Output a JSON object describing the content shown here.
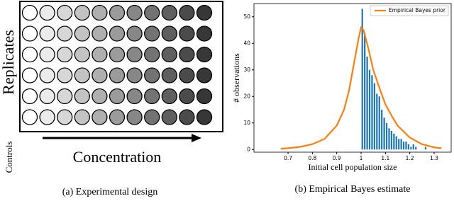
{
  "panel_a": {
    "row_label": "Replicates",
    "control_label": "Controls",
    "x_label": "Concentration",
    "caption": "(a)  Experimental design"
  },
  "chart_data": {
    "type": "histogram",
    "caption": "(b)  Empirical Bayes estimate",
    "x_label": "Initial cell population size",
    "y_label": "# observations",
    "bins": [
      1.0,
      1.01,
      1.02,
      1.03,
      1.04,
      1.05,
      1.06,
      1.07,
      1.08,
      1.09,
      1.1,
      1.11,
      1.12,
      1.13,
      1.14,
      1.15,
      1.16,
      1.17,
      1.18,
      1.19,
      1.2,
      1.21,
      1.22,
      1.23,
      1.24,
      1.25,
      1.26,
      1.27
    ],
    "values": [
      53,
      44,
      35,
      30,
      28,
      25,
      21,
      20,
      15,
      12,
      10,
      8,
      7,
      6,
      5,
      4,
      4,
      3,
      3,
      2,
      1,
      2,
      1,
      0,
      0,
      0,
      1
    ],
    "color": "#1f77b4",
    "series": [
      {
        "name": "Empirical Bayes prior",
        "color": "#ff7f0e",
        "x": [
          0.67,
          0.7,
          0.75,
          0.8,
          0.85,
          0.9,
          0.93,
          0.95,
          0.97,
          0.99,
          1.0,
          1.01,
          1.03,
          1.05,
          1.08,
          1.1,
          1.13,
          1.15,
          1.2,
          1.25,
          1.3,
          1.33
        ],
        "values": [
          0.3,
          0.5,
          1,
          2,
          4,
          9,
          15,
          22,
          32,
          42,
          46,
          45,
          38,
          30,
          22,
          17,
          12,
          9,
          4.5,
          2,
          0.8,
          0.5
        ]
      }
    ],
    "xlim": [
      0.56,
      1.37
    ],
    "ylim": [
      -1,
      55
    ],
    "xticks": [
      0.7,
      0.8,
      0.9,
      1.0,
      1.1,
      1.2,
      1.3
    ],
    "yticks": [
      0,
      10,
      20,
      30,
      40,
      50
    ],
    "legend": "upper right"
  }
}
